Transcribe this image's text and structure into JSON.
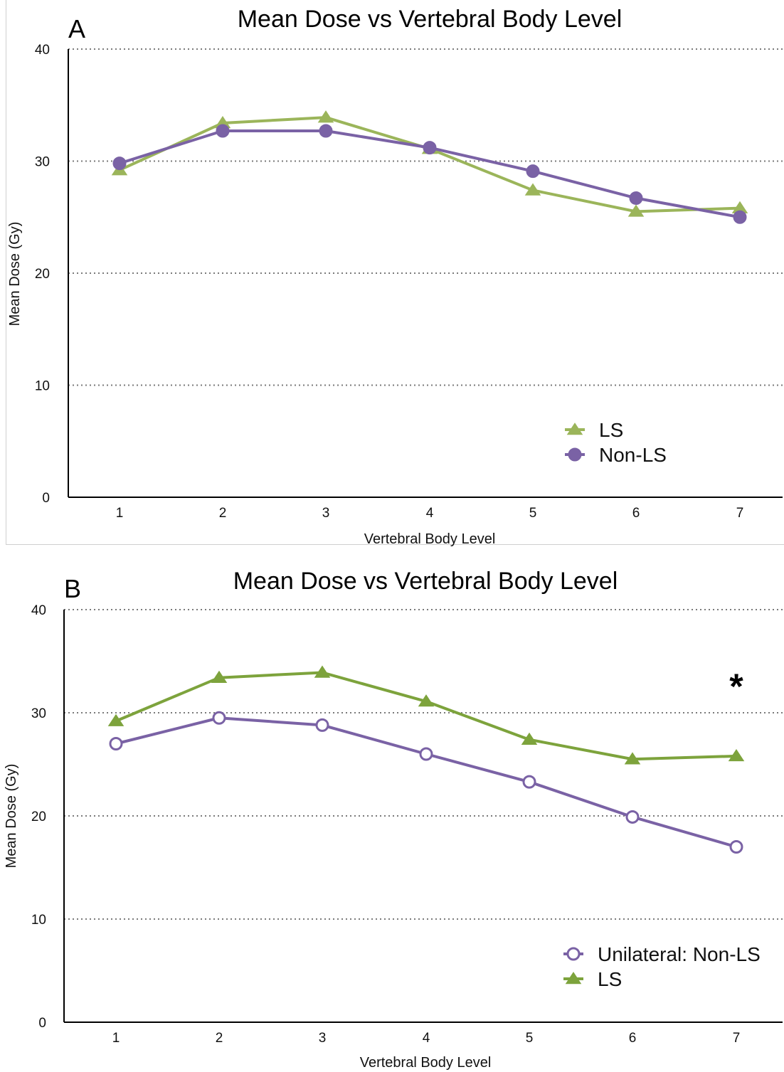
{
  "colors": {
    "ls": "#9bb55a",
    "non_ls": "#7a62a5"
  },
  "chart_data": [
    {
      "type": "line",
      "panel_letter": "A",
      "title": "Mean Dose vs Vertebral Body Level",
      "xlabel": "Vertebral Body Level",
      "ylabel": "Mean Dose (Gy)",
      "ylim": [
        0,
        40
      ],
      "yticks": [
        "0",
        "10",
        "20",
        "30",
        "40"
      ],
      "categories": [
        "1",
        "2",
        "3",
        "4",
        "5",
        "6",
        "7"
      ],
      "grid": true,
      "legend_position": "bottom-right",
      "series": [
        {
          "name": "LS",
          "marker": "triangle",
          "color": "#9bb55a",
          "values": [
            29.2,
            33.4,
            33.9,
            31.1,
            27.4,
            25.5,
            25.8
          ]
        },
        {
          "name": "Non-LS",
          "marker": "circle",
          "color": "#7a62a5",
          "values": [
            29.8,
            32.7,
            32.7,
            31.2,
            29.1,
            26.7,
            25.0
          ]
        }
      ]
    },
    {
      "type": "line",
      "panel_letter": "B",
      "title": "Mean Dose vs Vertebral Body Level",
      "xlabel": "Vertebral Body Level",
      "ylabel": "Mean Dose  (Gy)",
      "ylim": [
        0,
        40
      ],
      "yticks": [
        "0",
        "10",
        "20",
        "30",
        "40"
      ],
      "categories": [
        "1",
        "2",
        "3",
        "4",
        "5",
        "6",
        "7"
      ],
      "grid": true,
      "legend_position": "bottom-right",
      "annotation": "*",
      "series": [
        {
          "name": "Unilateral: Non-LS",
          "marker": "open-circle",
          "color": "#7a62a5",
          "values": [
            27.0,
            29.5,
            28.8,
            26.0,
            23.3,
            19.9,
            17.0
          ]
        },
        {
          "name": "LS",
          "marker": "triangle",
          "color": "#7da33c",
          "values": [
            29.2,
            33.4,
            33.9,
            31.1,
            27.4,
            25.5,
            25.8
          ]
        }
      ]
    }
  ]
}
